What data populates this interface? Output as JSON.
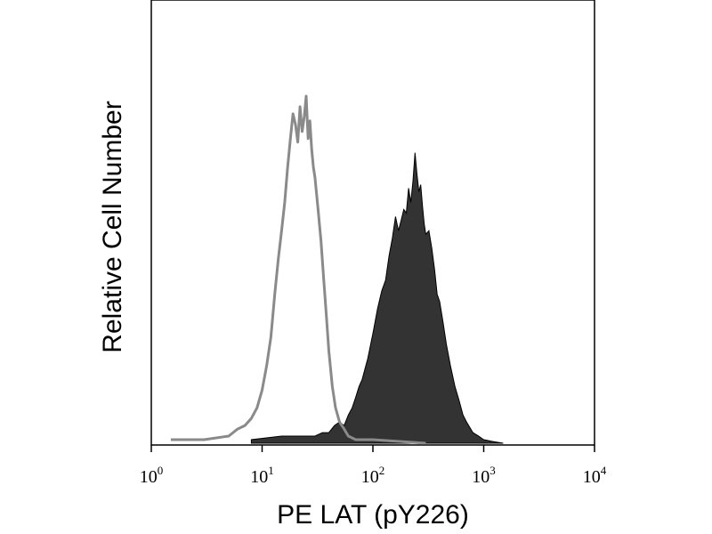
{
  "chart_data": {
    "type": "area",
    "title": "",
    "xlabel": "PE LAT (pY226)",
    "ylabel": "Relative Cell Number",
    "x_scale": "log",
    "xlim": [
      1,
      10000
    ],
    "ylim": [
      0,
      1
    ],
    "grid": false,
    "legend": "none",
    "x_ticks": [
      {
        "value": 1,
        "base": "10",
        "exp": "0"
      },
      {
        "value": 10,
        "base": "10",
        "exp": "1"
      },
      {
        "value": 100,
        "base": "10",
        "exp": "2"
      },
      {
        "value": 1000,
        "base": "10",
        "exp": "3"
      },
      {
        "value": 10000,
        "base": "10",
        "exp": "4"
      }
    ],
    "series": [
      {
        "style": "outline",
        "color": "#8a8a8a",
        "x": [
          1.5,
          3,
          5,
          6,
          7,
          8,
          9,
          10,
          11,
          12,
          13,
          14,
          15,
          16,
          17,
          18,
          19,
          20,
          21,
          22,
          23,
          24,
          25,
          26,
          27,
          28,
          29,
          30,
          32,
          34,
          36,
          38,
          40,
          43,
          46,
          50,
          55,
          60,
          70,
          80,
          100,
          300
        ],
        "y": [
          0.01,
          0.01,
          0.02,
          0.04,
          0.05,
          0.07,
          0.1,
          0.15,
          0.22,
          0.3,
          0.42,
          0.52,
          0.6,
          0.68,
          0.78,
          0.86,
          0.93,
          0.9,
          0.85,
          0.95,
          0.88,
          0.92,
          0.98,
          0.86,
          0.91,
          0.83,
          0.78,
          0.75,
          0.66,
          0.57,
          0.46,
          0.36,
          0.26,
          0.16,
          0.1,
          0.06,
          0.04,
          0.02,
          0.01,
          0.01,
          0.01,
          0.0
        ]
      },
      {
        "style": "filled",
        "color": "#333333",
        "x": [
          8,
          15,
          20,
          25,
          30,
          35,
          40,
          45,
          50,
          55,
          60,
          65,
          70,
          75,
          80,
          90,
          100,
          110,
          120,
          130,
          140,
          150,
          160,
          170,
          180,
          190,
          200,
          210,
          220,
          230,
          240,
          250,
          260,
          270,
          280,
          290,
          300,
          320,
          340,
          360,
          380,
          400,
          430,
          460,
          500,
          550,
          600,
          650,
          700,
          800,
          900,
          1000,
          1200,
          1500
        ],
        "y": [
          0.01,
          0.02,
          0.02,
          0.02,
          0.02,
          0.03,
          0.03,
          0.05,
          0.06,
          0.05,
          0.08,
          0.1,
          0.13,
          0.16,
          0.18,
          0.24,
          0.31,
          0.38,
          0.43,
          0.46,
          0.53,
          0.58,
          0.64,
          0.6,
          0.63,
          0.66,
          0.65,
          0.72,
          0.68,
          0.74,
          0.82,
          0.76,
          0.71,
          0.73,
          0.67,
          0.62,
          0.59,
          0.6,
          0.55,
          0.49,
          0.42,
          0.4,
          0.34,
          0.28,
          0.22,
          0.16,
          0.12,
          0.08,
          0.06,
          0.03,
          0.02,
          0.01,
          0.005,
          0.0
        ]
      }
    ]
  }
}
